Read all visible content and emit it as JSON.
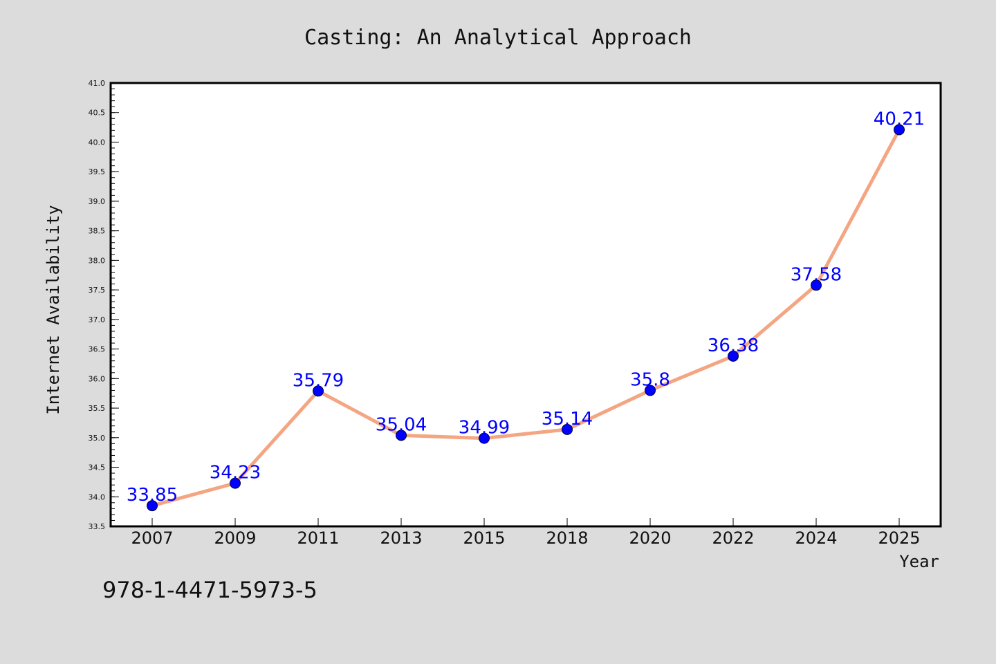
{
  "chart_data": {
    "type": "line",
    "title": "Casting: An Analytical Approach",
    "xlabel": "Year",
    "ylabel": "Internet Availability",
    "categories": [
      "2007",
      "2009",
      "2011",
      "2013",
      "2015",
      "2018",
      "2020",
      "2022",
      "2024",
      "2025"
    ],
    "series": [
      {
        "values": [
          33.85,
          34.23,
          35.79,
          35.04,
          34.99,
          35.14,
          35.8,
          36.38,
          37.58,
          40.21
        ],
        "data_labels": [
          "33.85",
          "34.23",
          "35.79",
          "35.04",
          "34.99",
          "35.14",
          "35.8",
          "36.38",
          "37.58",
          "40.21"
        ]
      }
    ],
    "ylim": [
      33.5,
      41.0
    ],
    "yticks": [
      "33.5",
      "34.0",
      "34.5",
      "35.0",
      "35.5",
      "36.0",
      "36.5",
      "37.0",
      "37.5",
      "38.0",
      "38.5",
      "39.0",
      "39.5",
      "40.0",
      "40.5",
      "41.0"
    ],
    "grid": false,
    "legend": "none",
    "colors": {
      "line": "#f4a582",
      "marker": "#0000ff",
      "data_label": "#0000ff",
      "background": "#dcdcdc",
      "plot_area": "#ffffff"
    }
  },
  "footer": {
    "isbn": "978-1-4471-5973-5"
  }
}
